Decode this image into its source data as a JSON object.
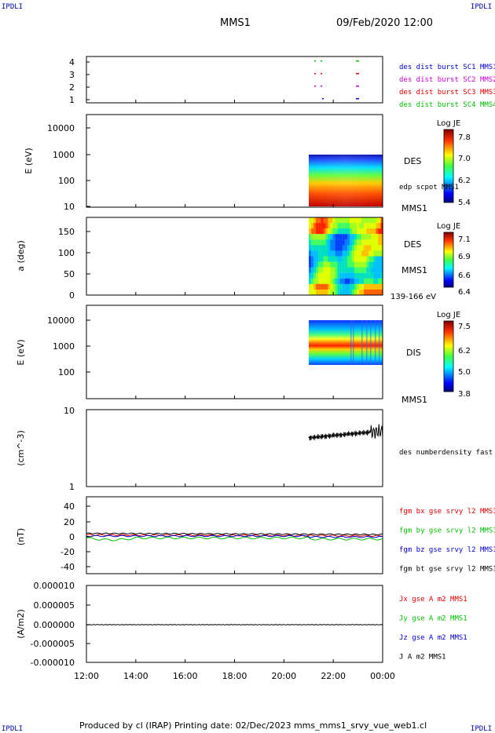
{
  "corners": {
    "tl": "IPDLI",
    "tr": "IPDLI",
    "bl": "IPDLI",
    "br": "IPDLI"
  },
  "header": {
    "mission": "MMS1",
    "datetime": "09/Feb/2020 12:00"
  },
  "footer": {
    "text": "Produced by cl (IRAP)   Printing date: 02/Dec/2023   mms_mms1_srvy_vue_web1.cl"
  },
  "colors": {
    "mms1": "#0000cc",
    "mms2": "#cc00cc",
    "mms3": "#dd0000",
    "mms4": "#00bb00",
    "black": "#000000"
  },
  "time_axis": {
    "ticks": [
      "12:00",
      "14:00",
      "16:00",
      "18:00",
      "20:00",
      "22:00",
      "00:00"
    ]
  },
  "chart_data": [
    {
      "type": "scatter",
      "name": "availability",
      "yticks": [
        "1",
        "2",
        "3",
        "4"
      ],
      "legend": [
        "des dist burst SC1 MMS1",
        "des dist burst SC2 MMS2",
        "des dist burst SC3 MMS3",
        "des dist burst SC4 MMS4"
      ],
      "segments_hours": [
        [
          21.6,
          21.8
        ],
        [
          23.6,
          23.9
        ]
      ]
    },
    {
      "type": "heatmap",
      "name": "des-energy",
      "ylabel": "E (eV)",
      "yticks": [
        "10",
        "100",
        "1000",
        "10000"
      ],
      "label": "DES",
      "label2": "edp scpot MMS1",
      "mms": "MMS1",
      "colorbar": {
        "title": "Log JE",
        "ticks": [
          "7.8",
          "7.0",
          "6.2",
          "5.4"
        ]
      },
      "x_range_hours": [
        21.0,
        24.0
      ],
      "y_range": [
        10,
        1000
      ]
    },
    {
      "type": "heatmap",
      "name": "des-pitch",
      "ylabel": "a (deg)",
      "yticks": [
        "0",
        "50",
        "100",
        "150"
      ],
      "label": "DES",
      "mms": "MMS1",
      "range": "139-166 eV",
      "colorbar": {
        "title": "Log JE",
        "ticks": [
          "7.1",
          "6.9",
          "6.6",
          "6.4"
        ]
      },
      "x_range_hours": [
        21.0,
        24.0
      ],
      "y_range": [
        0,
        180
      ]
    },
    {
      "type": "heatmap",
      "name": "dis-energy",
      "ylabel": "E (eV)",
      "yticks": [
        "100",
        "1000",
        "10000"
      ],
      "label": "DIS",
      "mms": "MMS1",
      "colorbar": {
        "title": "Log JE",
        "ticks": [
          "7.5",
          "6.2",
          "5.0",
          "3.8"
        ]
      },
      "x_range_hours": [
        21.0,
        24.0
      ],
      "y_range": [
        200,
        10000
      ]
    },
    {
      "type": "line",
      "name": "density",
      "ylabel": "(cm^-3)",
      "yticks": [
        "1",
        "10"
      ],
      "legend": [
        "des numberdensity fast M"
      ],
      "x": [
        21.0,
        21.5,
        22.0,
        22.5,
        23.0,
        23.5,
        24.0
      ],
      "y": [
        4.3,
        4.6,
        4.8,
        5.0,
        5.2,
        5.3,
        5.1
      ]
    },
    {
      "type": "line",
      "name": "magnetic-field",
      "ylabel": "(nT)",
      "yticks": [
        "40",
        "20",
        "0",
        "-20",
        "-40"
      ],
      "legend": [
        "fgm bx gse srvy l2 MMS1",
        "fgm by gse srvy l2 MMS1",
        "fgm bz gse srvy l2 MMS1",
        "fgm bt gse srvy l2 MMS1"
      ],
      "ylim": [
        -50,
        50
      ]
    },
    {
      "type": "line",
      "name": "current-density",
      "ylabel": "(A/m2)",
      "yticks": [
        "0.000010",
        "0.000005",
        "0.000000",
        "-0.000005",
        "-0.000010"
      ],
      "legend": [
        "Jx gse A m2 MMS1",
        "Jy gse A m2 MMS1",
        "Jz gse A m2 MMS1",
        "J A m2 MMS1"
      ],
      "ylim": [
        -1e-05,
        1e-05
      ],
      "value": 0.0
    }
  ]
}
